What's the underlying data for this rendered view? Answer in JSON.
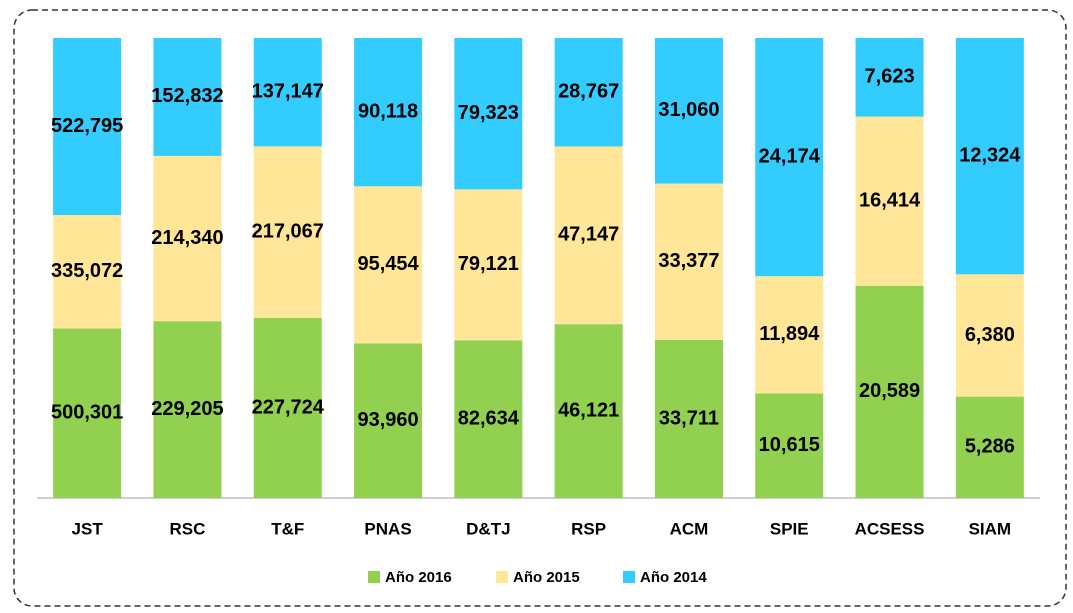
{
  "chart_data": {
    "type": "bar",
    "stacked_percent": true,
    "categories": [
      "JST",
      "RSC",
      "T&F",
      "PNAS",
      "D&TJ",
      "RSP",
      "ACM",
      "SPIE",
      "ACSESS",
      "SIAM"
    ],
    "series": [
      {
        "name": "Año 2016",
        "color": "#92d050",
        "values": [
          500301,
          229205,
          227724,
          93960,
          82634,
          46121,
          33711,
          10615,
          20589,
          5286
        ],
        "value_labels": [
          "500,301",
          "229,205",
          "227,724",
          "93,960",
          "82,634",
          "46,121",
          "33,711",
          "10,615",
          "20,589",
          "5,286"
        ]
      },
      {
        "name": "Año 2015",
        "color": "#ffe699",
        "values": [
          335072,
          214340,
          217067,
          95454,
          79121,
          47147,
          33377,
          11894,
          16414,
          6380
        ],
        "value_labels": [
          "335,072",
          "214,340",
          "217,067",
          "95,454",
          "79,121",
          "47,147",
          "33,377",
          "11,894",
          "16,414",
          "6,380"
        ]
      },
      {
        "name": "Año 2014",
        "color": "#33ccff",
        "values": [
          522795,
          152832,
          137147,
          90118,
          79323,
          28767,
          31060,
          24174,
          7623,
          12324
        ],
        "value_labels": [
          "522,795",
          "152,832",
          "137,147",
          "90,118",
          "79,323",
          "28,767",
          "31,060",
          "24,174",
          "7,623",
          "12,324"
        ]
      }
    ],
    "legend": "bottom"
  }
}
